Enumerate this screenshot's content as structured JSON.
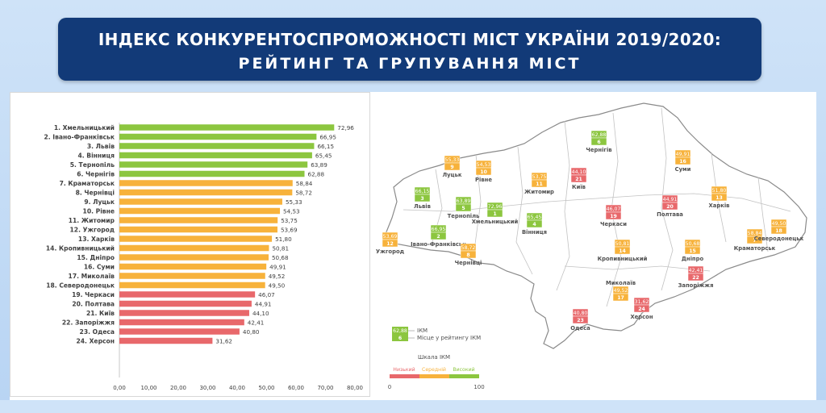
{
  "header": {
    "title_line1": "ІНДЕКС КОНКУРЕНТОСПРОМОЖНОСТІ МІСТ УКРАЇНИ 2019/2020:",
    "title_line2": "РЕЙТИНГ ТА ГРУПУВАННЯ МІСТ"
  },
  "colors": {
    "high": "#8cc63f",
    "medium": "#f7b23b",
    "low": "#e8686b",
    "header_bg": "#123a78"
  },
  "chart_data": {
    "type": "bar",
    "orientation": "horizontal",
    "categories": [
      "1. Хмельницький",
      "2. Івано-Франківськ",
      "3. Львів",
      "4. Вінниця",
      "5. Тернопіль",
      "6. Чернігів",
      "7. Краматорськ",
      "8. Чернівці",
      "9. Луцьк",
      "10. Рівне",
      "11. Житомир",
      "12. Ужгород",
      "13. Харків",
      "14. Кропивницький",
      "15. Дніпро",
      "16. Суми",
      "17. Миколаїв",
      "18. Северодонецьк",
      "19. Черкаси",
      "20. Полтава",
      "21. Київ",
      "22. Запоріжжя",
      "23. Одеса",
      "24. Херсон"
    ],
    "values": [
      72.96,
      66.95,
      66.15,
      65.45,
      63.89,
      62.88,
      58.84,
      58.72,
      55.33,
      54.53,
      53.75,
      53.69,
      51.8,
      50.81,
      50.68,
      49.91,
      49.52,
      49.5,
      46.07,
      44.91,
      44.1,
      42.41,
      40.8,
      31.62
    ],
    "value_labels": [
      "72,96",
      "66,95",
      "66,15",
      "65,45",
      "63,89",
      "62,88",
      "58,84",
      "58,72",
      "55,33",
      "54,53",
      "53,75",
      "53,69",
      "51,80",
      "50,81",
      "50,68",
      "49,91",
      "49,52",
      "49,50",
      "46,07",
      "44,91",
      "44,10",
      "42,41",
      "40,80",
      "31,62"
    ],
    "groups": [
      "high",
      "high",
      "high",
      "high",
      "high",
      "high",
      "medium",
      "medium",
      "medium",
      "medium",
      "medium",
      "medium",
      "medium",
      "medium",
      "medium",
      "medium",
      "medium",
      "medium",
      "low",
      "low",
      "low",
      "low",
      "low",
      "low"
    ],
    "xlim": [
      0,
      80
    ],
    "x_ticks": [
      "0,00",
      "10,00",
      "20,00",
      "30,00",
      "40,00",
      "50,00",
      "60,00",
      "70,00",
      "80,00"
    ],
    "grid": false
  },
  "map": {
    "cities": [
      {
        "name": "Чернігів",
        "value": "62,88",
        "rank": "6",
        "group": "high"
      },
      {
        "name": "Суми",
        "value": "49,91",
        "rank": "16",
        "group": "medium"
      },
      {
        "name": "Луцьк",
        "value": "55,33",
        "rank": "9",
        "group": "medium"
      },
      {
        "name": "Рівне",
        "value": "54,53",
        "rank": "10",
        "group": "medium"
      },
      {
        "name": "Житомир",
        "value": "53,75",
        "rank": "11",
        "group": "medium"
      },
      {
        "name": "Київ",
        "value": "44,10",
        "rank": "21",
        "group": "low"
      },
      {
        "name": "Львів",
        "value": "66,15",
        "rank": "3",
        "group": "high"
      },
      {
        "name": "Тернопіль",
        "value": "63,89",
        "rank": "5",
        "group": "high"
      },
      {
        "name": "Хмельницький",
        "value": "72,96",
        "rank": "1",
        "group": "high"
      },
      {
        "name": "Вінниця",
        "value": "65,45",
        "rank": "4",
        "group": "high"
      },
      {
        "name": "Харків",
        "value": "51,80",
        "rank": "13",
        "group": "medium"
      },
      {
        "name": "Полтава",
        "value": "44,91",
        "rank": "20",
        "group": "low"
      },
      {
        "name": "Черкаси",
        "value": "46,07",
        "rank": "19",
        "group": "low"
      },
      {
        "name": "Ужгород",
        "value": "53,69",
        "rank": "12",
        "group": "medium"
      },
      {
        "name": "Івано-Франківськ",
        "value": "66,95",
        "rank": "2",
        "group": "high"
      },
      {
        "name": "Чернівці",
        "value": "58,72",
        "rank": "8",
        "group": "medium"
      },
      {
        "name": "Кропивницький",
        "value": "50,81",
        "rank": "14",
        "group": "medium"
      },
      {
        "name": "Дніпро",
        "value": "50,68",
        "rank": "15",
        "group": "medium"
      },
      {
        "name": "Краматорськ",
        "value": "58,84",
        "rank": "7",
        "group": "medium"
      },
      {
        "name": "Северодонецьк",
        "value": "49,50",
        "rank": "18",
        "group": "medium"
      },
      {
        "name": "Запоріжжя",
        "value": "42,41",
        "rank": "22",
        "group": "low"
      },
      {
        "name": "Миколаїв",
        "value": "49,52",
        "rank": "17",
        "group": "medium"
      },
      {
        "name": "Херсон",
        "value": "31,62",
        "rank": "24",
        "group": "low"
      },
      {
        "name": "Одеса",
        "value": "40,80",
        "rank": "23",
        "group": "low"
      }
    ],
    "legend": {
      "sample_value": "62,88",
      "sample_rank": "6",
      "value_label": "ІКМ",
      "rank_label": "Місце у рейтингу ІКМ",
      "scale_title": "Шкала ІКМ",
      "scale_low": "Низький",
      "scale_medium": "Середній",
      "scale_high": "Високий",
      "scale_min": "0",
      "scale_max": "100"
    }
  }
}
